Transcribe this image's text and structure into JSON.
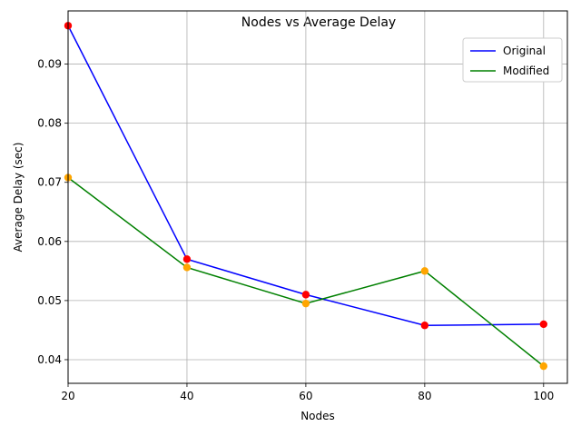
{
  "chart_data": {
    "type": "line",
    "title": "Nodes vs Average Delay",
    "xlabel": "Nodes",
    "ylabel": "Average Delay (sec)",
    "x": [
      20,
      40,
      60,
      80,
      100
    ],
    "xlim": [
      20,
      104
    ],
    "ylim": [
      0.036,
      0.099
    ],
    "xticks": [
      20,
      40,
      60,
      80,
      100
    ],
    "yticks": [
      0.04,
      0.05,
      0.06,
      0.07,
      0.08,
      0.09
    ],
    "ytick_labels": [
      "0.04",
      "0.05",
      "0.06",
      "0.07",
      "0.08",
      "0.09"
    ],
    "grid": true,
    "legend_position": "top-right",
    "series": [
      {
        "name": "Original",
        "values": [
          0.0965,
          0.057,
          0.051,
          0.0458,
          0.046
        ],
        "line_color": "#0000ff",
        "marker_color": "#ff0000"
      },
      {
        "name": "Modified",
        "values": [
          0.0708,
          0.0556,
          0.0495,
          0.055,
          0.0389
        ],
        "line_color": "#008000",
        "marker_color": "#ffa500"
      }
    ]
  }
}
